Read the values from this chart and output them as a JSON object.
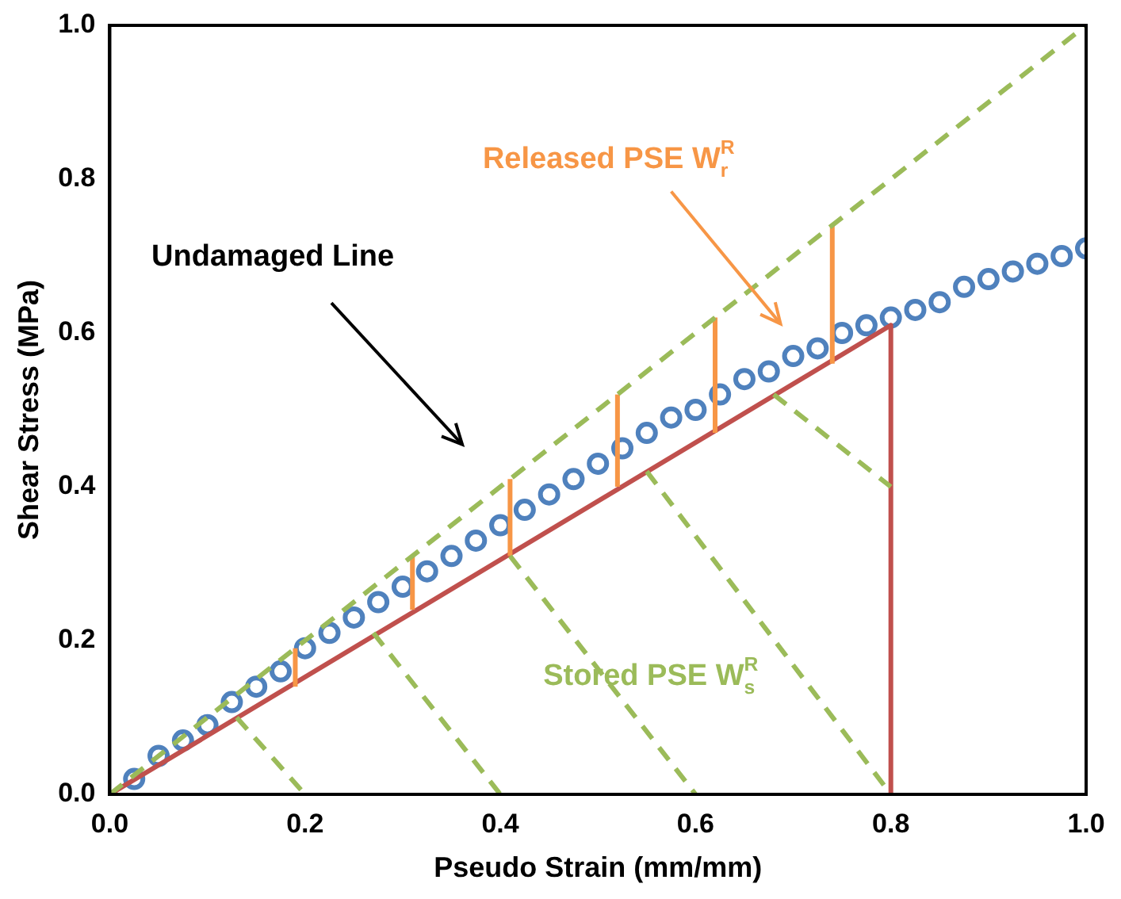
{
  "chart_data": {
    "type": "scatter",
    "xlabel": "Pseudo Strain (mm/mm)",
    "ylabel": "Shear Stress (MPa)",
    "xlim": [
      0,
      1
    ],
    "ylim": [
      0,
      1
    ],
    "xticks": [
      {
        "value": 0,
        "label": "0.0"
      },
      {
        "value": 0.2,
        "label": "0.2"
      },
      {
        "value": 0.4,
        "label": "0.4"
      },
      {
        "value": 0.6,
        "label": "0.6"
      },
      {
        "value": 0.8,
        "label": "0.8"
      },
      {
        "value": 1,
        "label": "1.0"
      }
    ],
    "yticks": [
      {
        "value": 0,
        "label": "0.0"
      },
      {
        "value": 0.2,
        "label": "0.2"
      },
      {
        "value": 0.4,
        "label": "0.4"
      },
      {
        "value": 0.6,
        "label": "0.6"
      },
      {
        "value": 0.8,
        "label": "0.8"
      },
      {
        "value": 1,
        "label": "1.0"
      }
    ],
    "grid": false,
    "legend": false,
    "series": [
      {
        "type": "line",
        "color": "#9bbb59",
        "line_style": "dashed",
        "marker": "none",
        "x": [
          0.13,
          0.2
        ],
        "values": [
          0.1,
          0
        ]
      },
      {
        "type": "line",
        "color": "#9bbb59",
        "line_style": "dashed",
        "marker": "none",
        "x": [
          0.27,
          0.4
        ],
        "values": [
          0.21,
          0
        ]
      },
      {
        "type": "line",
        "color": "#9bbb59",
        "line_style": "dashed",
        "marker": "none",
        "x": [
          0.41,
          0.6
        ],
        "values": [
          0.31,
          0
        ]
      },
      {
        "type": "line",
        "color": "#9bbb59",
        "line_style": "dashed",
        "marker": "none",
        "x": [
          0.55,
          0.8
        ],
        "values": [
          0.42,
          0
        ]
      },
      {
        "type": "line",
        "color": "#9bbb59",
        "line_style": "dashed",
        "marker": "none",
        "x": [
          0.68,
          0.8
        ],
        "values": [
          0.52,
          0.4
        ]
      },
      {
        "type": "line",
        "color": "#9bbb59",
        "line_style": "dashed",
        "marker": "none",
        "x": [
          0,
          1
        ],
        "values": [
          0,
          1
        ]
      },
      {
        "type": "line",
        "color": "#f79646",
        "line_style": "solid",
        "marker": "none",
        "x": [
          0.19,
          0.19
        ],
        "values": [
          0.14,
          0.19
        ]
      },
      {
        "type": "line",
        "color": "#f79646",
        "line_style": "solid",
        "marker": "none",
        "x": [
          0.31,
          0.31
        ],
        "values": [
          0.24,
          0.31
        ]
      },
      {
        "type": "line",
        "color": "#f79646",
        "line_style": "solid",
        "marker": "none",
        "x": [
          0.41,
          0.41
        ],
        "values": [
          0.31,
          0.41
        ]
      },
      {
        "type": "line",
        "color": "#f79646",
        "line_style": "solid",
        "marker": "none",
        "x": [
          0.52,
          0.52
        ],
        "values": [
          0.4,
          0.52
        ]
      },
      {
        "type": "line",
        "color": "#f79646",
        "line_style": "solid",
        "marker": "none",
        "x": [
          0.62,
          0.62
        ],
        "values": [
          0.47,
          0.62
        ]
      },
      {
        "type": "line",
        "color": "#f79646",
        "line_style": "solid",
        "marker": "none",
        "x": [
          0.74,
          0.74
        ],
        "values": [
          0.56,
          0.74
        ]
      },
      {
        "type": "line",
        "color": "#c0504d",
        "line_style": "solid",
        "marker": "none",
        "x": [
          0,
          0.8,
          0.8
        ],
        "values": [
          0,
          0.61,
          0
        ]
      },
      {
        "type": "scatter",
        "color": "#4f81bd",
        "marker": "circle",
        "x": [
          0.025,
          0.05,
          0.075,
          0.1,
          0.125,
          0.15,
          0.175,
          0.2,
          0.225,
          0.25,
          0.275,
          0.3,
          0.325,
          0.35,
          0.375,
          0.4,
          0.425,
          0.45,
          0.475,
          0.5,
          0.525,
          0.55,
          0.575,
          0.6,
          0.625,
          0.65,
          0.675,
          0.7,
          0.725,
          0.75,
          0.775,
          0.8,
          0.825,
          0.85,
          0.875,
          0.9,
          0.925,
          0.95,
          0.975,
          1
        ],
        "values": [
          0.02,
          0.05,
          0.07,
          0.09,
          0.12,
          0.14,
          0.16,
          0.19,
          0.21,
          0.23,
          0.25,
          0.27,
          0.29,
          0.31,
          0.33,
          0.35,
          0.37,
          0.39,
          0.41,
          0.43,
          0.45,
          0.47,
          0.49,
          0.5,
          0.52,
          0.54,
          0.55,
          0.57,
          0.58,
          0.6,
          0.61,
          0.62,
          0.63,
          0.64,
          0.66,
          0.67,
          0.68,
          0.69,
          0.7,
          0.71
        ]
      }
    ],
    "annotations": [
      "Undamaged Line",
      "Released PSE W$^{R}$$_{r}$",
      "Stored PSE W$^{R}$$_{s}$"
    ]
  }
}
